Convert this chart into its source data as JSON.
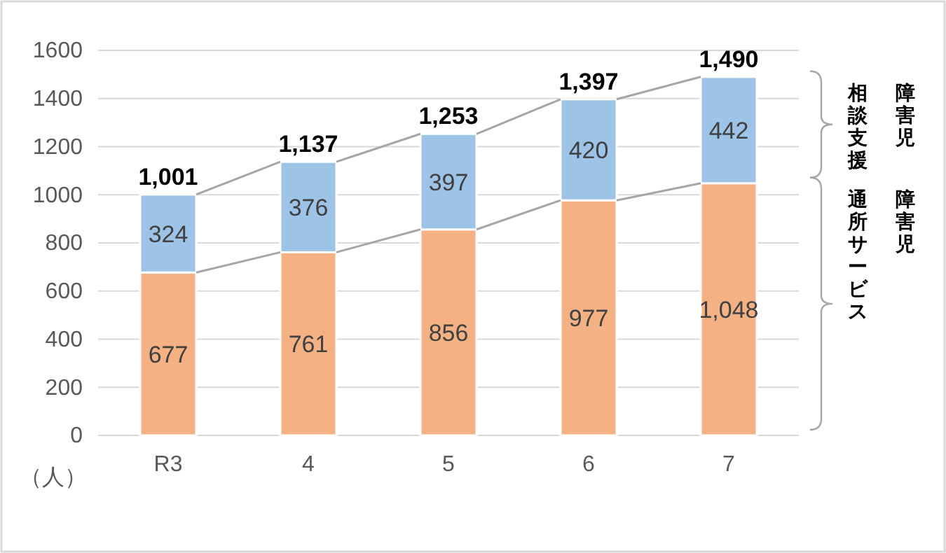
{
  "chart_data": {
    "type": "bar",
    "stacked": true,
    "ylabel": "（人）",
    "categories": [
      "R3",
      "4",
      "5",
      "6",
      "7"
    ],
    "series": [
      {
        "name": "障害児通所サービス",
        "color": "#f4b183",
        "values": [
          677,
          761,
          856,
          977,
          1048
        ],
        "value_labels": [
          "677",
          "761",
          "856",
          "977",
          "1,048"
        ]
      },
      {
        "name": "障害児相談支援",
        "color": "#9dc3e6",
        "values": [
          324,
          376,
          397,
          420,
          442
        ],
        "value_labels": [
          "324",
          "376",
          "397",
          "420",
          "442"
        ]
      }
    ],
    "totals": [
      "1,001",
      "1,137",
      "1,253",
      "1,397",
      "1,490"
    ],
    "ylim": [
      0,
      1600
    ],
    "yticks": [
      0,
      200,
      400,
      600,
      800,
      1000,
      1200,
      1400,
      1600
    ],
    "grid": "y"
  }
}
